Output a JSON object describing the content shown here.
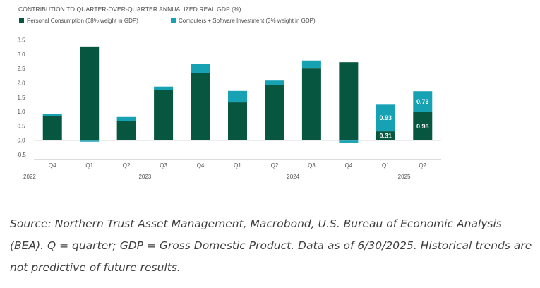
{
  "colors": {
    "personal": "#07563f",
    "computers": "#17a2b3",
    "axis": "#b8b8b8"
  },
  "chart_data": {
    "type": "bar",
    "stacked": true,
    "title": "CONTRIBUTION TO QUARTER-OVER-QUARTER ANNUALIZED REAL GDP (%)",
    "legend_position": "top-left",
    "ylim": [
      -0.5,
      3.5
    ],
    "yticks": [
      "3.5",
      "3.0",
      "2.5",
      "2.0",
      "1.5",
      "1.0",
      "0.5",
      "0.0",
      "-0.5"
    ],
    "ytick_values": [
      3.5,
      3.0,
      2.5,
      2.0,
      1.5,
      1.0,
      0.5,
      0.0,
      -0.5
    ],
    "categories": [
      "Q4",
      "Q1",
      "Q2",
      "Q3",
      "Q4",
      "Q1",
      "Q2",
      "Q3",
      "Q4",
      "Q1",
      "Q2"
    ],
    "years": [
      {
        "label": "2022",
        "anchor_index": 0,
        "align": "left"
      },
      {
        "label": "2023",
        "anchor_index": 2.5,
        "align": "middle"
      },
      {
        "label": "2024",
        "anchor_index": 6.5,
        "align": "middle"
      },
      {
        "label": "2025",
        "anchor_index": 9.5,
        "align": "middle"
      }
    ],
    "series": [
      {
        "name": "Personal Consumption (68% weight in GDP)",
        "color": "#07563f",
        "values": [
          0.83,
          3.27,
          0.67,
          1.75,
          2.35,
          1.32,
          1.93,
          2.5,
          2.72,
          0.31,
          0.98
        ],
        "labels": [
          null,
          null,
          null,
          null,
          null,
          null,
          null,
          null,
          null,
          "0.31",
          "0.98"
        ]
      },
      {
        "name": "Computers + Software Investment (3% weight in GDP)",
        "color": "#17a2b3",
        "values": [
          0.08,
          -0.05,
          0.14,
          0.12,
          0.32,
          0.4,
          0.15,
          0.28,
          -0.08,
          0.93,
          0.73
        ],
        "labels": [
          null,
          null,
          null,
          null,
          null,
          null,
          null,
          null,
          null,
          "0.93",
          "0.73"
        ]
      }
    ]
  },
  "caption": "Source: Northern Trust Asset Management, Macrobond, U.S. Bureau of Economic Analysis (BEA). Q = quarter; GDP = Gross Domestic Product. Data as of 6/30/2025. Historical trends are not predictive of future results."
}
